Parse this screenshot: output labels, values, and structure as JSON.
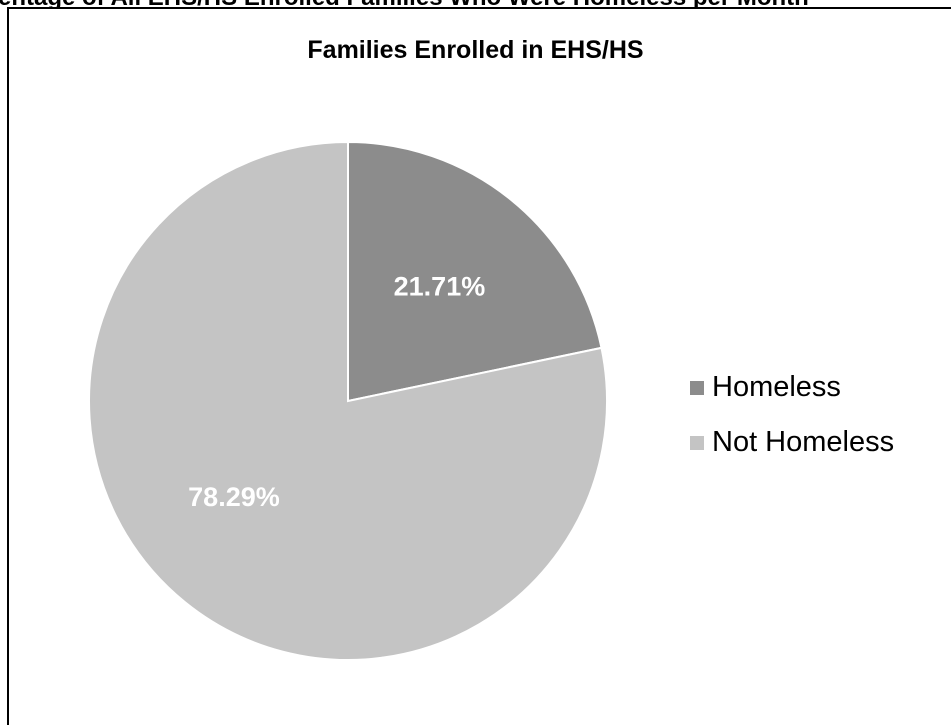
{
  "header": {
    "cut_off_text": "entage of All EHS/HS Enrolled Families Who Were Homeless per Month"
  },
  "chart_data": {
    "type": "pie",
    "title": "Families Enrolled in EHS/HS",
    "categories": [
      "Homeless",
      "Not Homeless"
    ],
    "values": [
      21.71,
      78.29
    ],
    "data_labels": [
      "21.71%",
      "78.29%"
    ],
    "colors": [
      "#8c8c8c",
      "#c4c4c4"
    ],
    "label_color": "#ffffff",
    "start_angle": "12 o'clock",
    "direction": "clockwise",
    "legend": {
      "position": "right",
      "entries": [
        "Homeless",
        "Not Homeless"
      ]
    }
  }
}
